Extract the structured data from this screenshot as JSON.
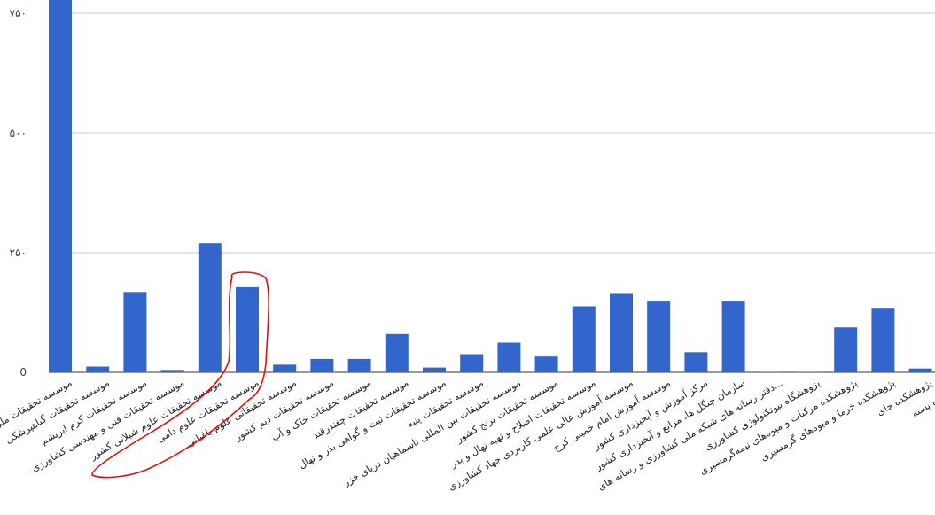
{
  "chart_data": {
    "type": "bar",
    "colors": {
      "bar": "#3366cc",
      "grid": "#cccccc",
      "highlight": "#e01010"
    },
    "ylim": [
      0,
      780
    ],
    "y_ticks": [
      {
        "value": 0,
        "label": "0"
      },
      {
        "value": 250,
        "label": "۲۵۰"
      },
      {
        "value": 500,
        "label": "۵۰۰"
      },
      {
        "value": 750,
        "label": "۷۵۰"
      }
    ],
    "grid": true,
    "categories": [
      "موسسه تحقیقات ملی شناسی ( نشر آموزش",
      "موسسه تحقیقات گیاهپزشکی",
      "موسسه تحقیقات کرم ابریشم",
      "موسسه تحقیقات فنی و مهندسی کشاورزی",
      "موسسه تحقیقات علوم شیلاتی کشور",
      "موسسه تحقیقات علوم دامی",
      "موسسه تحقیقاتی علوم باغبانی",
      "موسسه تحقیقات دیم کشور",
      "موسسه تحقیقات خاک و آب",
      "موسسه تحقیقات چغندرقند",
      "موسسه تحقیقات ثبت و گواهی بذر و نهال",
      "موسسه تحقیقات پنبه",
      "موسسه تحقیقات بین المللی تاسماهیان دریای خزر",
      "موسسه تحقیقات برنج کشور",
      "موسسه تحقیقات اصلاح و تهیه نهال و بذر",
      "موسسه آموزش عالی علمی کاربردی جهاد کشاورزی",
      "موسسه آموزش امام خمینی کرج",
      "مرکز آموزش و آبخیزداری کشور",
      "سازمان جنگل ها، مراتع و آبخیزداری کشور",
      "دفتر رسانه های شبکه ملی کشاورزی و رسانه های...",
      "پژوهشگاه بیوتکنولوژی کشاورزی",
      "پژوهشکده مرکبات و میوه‌های نیمه‌گرمسیری",
      "پژوهشکده خرما و میوه‌های گرمسیری",
      "پژوهشکده چای",
      "پژوهشکده پسته"
    ],
    "values": [
      780,
      12,
      168,
      5,
      270,
      178,
      16,
      28,
      28,
      80,
      10,
      38,
      62,
      33,
      138,
      164,
      148,
      42,
      148,
      1,
      1,
      94,
      133,
      8,
      0
    ],
    "highlighted_category_index": 5
  }
}
